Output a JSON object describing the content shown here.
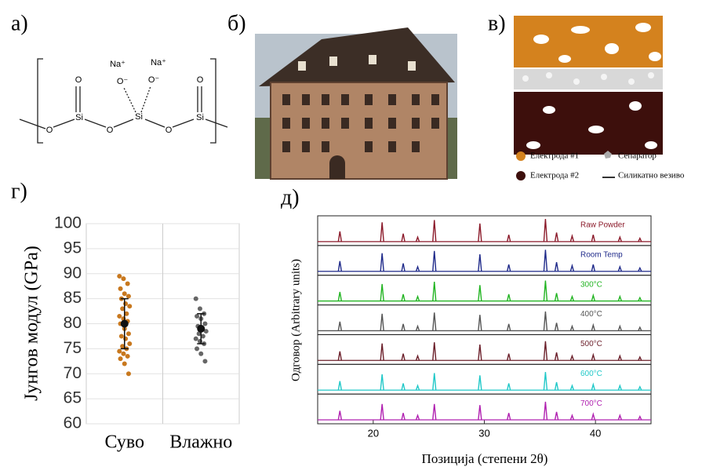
{
  "panel_labels": [
    "а)",
    "б)",
    "в)",
    "г)",
    "д)"
  ],
  "structure": {
    "atoms": [
      "O",
      "O",
      "Si",
      "O",
      "Na⁺",
      "Na⁺",
      "O⁻",
      "O⁻",
      "Si",
      "O",
      "O",
      "Si"
    ]
  },
  "diagram_legend": [
    "Електрода #1",
    "Сепаратор",
    "Електрода #2",
    "Силикатно везиво"
  ],
  "chart_data": [
    {
      "type": "strip",
      "ylabel": "Јунгов модул (GPa)",
      "categories": [
        "Суво",
        "Влажно"
      ],
      "ylim": [
        60,
        100
      ],
      "yticks": [
        60,
        65,
        70,
        75,
        80,
        85,
        90,
        95,
        100
      ],
      "series": [
        {
          "color": "#c8781e",
          "values": [
            89.5,
            89,
            88,
            87,
            86,
            85.5,
            85,
            84,
            83.5,
            83,
            82,
            81.5,
            81,
            80.5,
            80,
            79,
            78,
            77.5,
            77,
            76,
            75.5,
            75,
            74.5,
            74,
            73.5,
            73,
            72,
            70
          ],
          "mean": 80,
          "sd": 5
        },
        {
          "color": "#666666",
          "values": [
            85,
            83,
            82,
            81.5,
            81,
            80,
            79.5,
            79,
            78.5,
            78,
            77.5,
            77,
            76.5,
            76,
            75,
            74,
            72.5
          ],
          "mean": 79,
          "sd": 3
        }
      ]
    },
    {
      "type": "stick",
      "xlabel": "Позиција (степени 2θ)",
      "ylabel": "Одговор (Arbitrary units)",
      "xlim": [
        15,
        45
      ],
      "xticks": [
        20,
        30,
        40
      ],
      "x": [
        17,
        20.8,
        22.7,
        24,
        25.5,
        29.6,
        32.2,
        35.5,
        36.5,
        37.9,
        39.8,
        42.2,
        44
      ],
      "series": [
        {
          "name": "Raw Powder",
          "color": "#8b1a2a",
          "values": [
            0.45,
            0.85,
            0.35,
            0.2,
            0.95,
            0.8,
            0.3,
            1,
            0.4,
            0.25,
            0.3,
            0.2,
            0.15
          ]
        },
        {
          "name": "Room Temp",
          "color": "#1f2a8a",
          "values": [
            0.45,
            0.8,
            0.35,
            0.2,
            0.9,
            0.75,
            0.3,
            0.95,
            0.4,
            0.25,
            0.3,
            0.2,
            0.15
          ]
        },
        {
          "name": "300°C",
          "color": "#22b422",
          "values": [
            0.4,
            0.75,
            0.3,
            0.2,
            0.85,
            0.7,
            0.3,
            0.9,
            0.35,
            0.2,
            0.25,
            0.2,
            0.15
          ]
        },
        {
          "name": "400°C",
          "color": "#555555",
          "values": [
            0.4,
            0.75,
            0.3,
            0.2,
            0.8,
            0.7,
            0.3,
            0.85,
            0.35,
            0.2,
            0.25,
            0.2,
            0.15
          ]
        },
        {
          "name": "500°C",
          "color": "#6b1f2a",
          "values": [
            0.4,
            0.75,
            0.3,
            0.2,
            0.8,
            0.7,
            0.3,
            0.85,
            0.35,
            0.2,
            0.25,
            0.2,
            0.15
          ]
        },
        {
          "name": "600°C",
          "color": "#20c8c8",
          "values": [
            0.4,
            0.7,
            0.3,
            0.2,
            0.75,
            0.65,
            0.3,
            0.8,
            0.35,
            0.2,
            0.25,
            0.2,
            0.15
          ]
        },
        {
          "name": "700°C",
          "color": "#b020b0",
          "values": [
            0.4,
            0.7,
            0.3,
            0.2,
            0.7,
            0.65,
            0.3,
            0.8,
            0.35,
            0.2,
            0.25,
            0.2,
            0.15
          ]
        }
      ]
    }
  ]
}
